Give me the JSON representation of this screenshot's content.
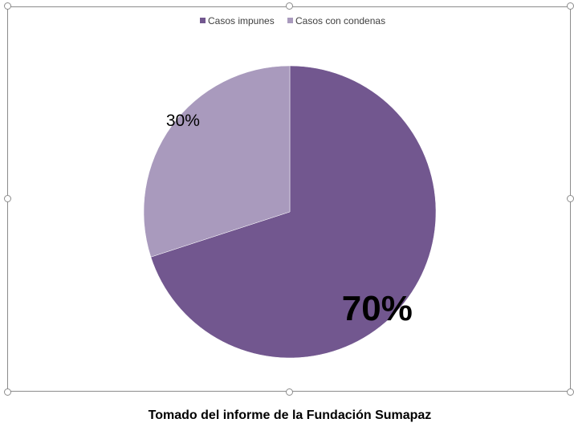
{
  "caption": "Tomado del informe de la Fundación Sumapaz",
  "chart_data": {
    "type": "pie",
    "title": "",
    "categories": [
      "Casos impunes",
      "Casos con condenas"
    ],
    "values": [
      70,
      30
    ],
    "data_labels": [
      "70%",
      "30%"
    ],
    "colors": [
      "#72578f",
      "#a99abd"
    ],
    "legend_position": "top",
    "start_angle": "12 o'clock, clockwise"
  }
}
